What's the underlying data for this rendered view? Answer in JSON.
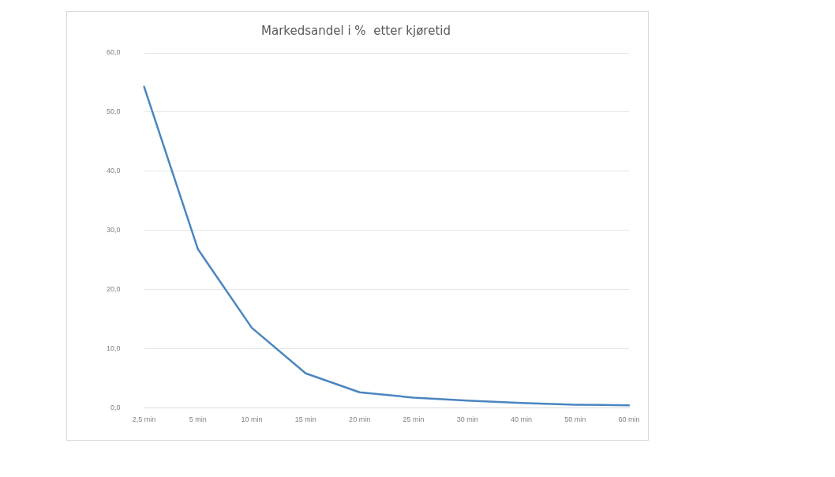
{
  "chart_data": {
    "type": "line",
    "title": "Markedsandel i %  etter kjøretid",
    "categories": [
      "2,5 min",
      "5 min",
      "10 min",
      "15 min",
      "20 min",
      "25 min",
      "30 min",
      "40 min",
      "50 min",
      "60 min"
    ],
    "series": [
      {
        "color": "#4a86c0",
        "values": [
          54.3,
          26.8,
          13.5,
          5.8,
          2.6,
          1.7,
          1.2,
          0.8,
          0.5,
          0.4
        ]
      }
    ],
    "ylim": [
      0,
      60
    ],
    "yticks": [
      {
        "value": 0,
        "label": "0,0"
      },
      {
        "value": 10,
        "label": "10,0"
      },
      {
        "value": 20,
        "label": "20,0"
      },
      {
        "value": 30,
        "label": "30,0"
      },
      {
        "value": 40,
        "label": "40,0"
      },
      {
        "value": 50,
        "label": "50,0"
      },
      {
        "value": 60,
        "label": "60,0"
      }
    ],
    "grid": "y",
    "legend": false,
    "marker": "none",
    "line_style": "solid"
  }
}
